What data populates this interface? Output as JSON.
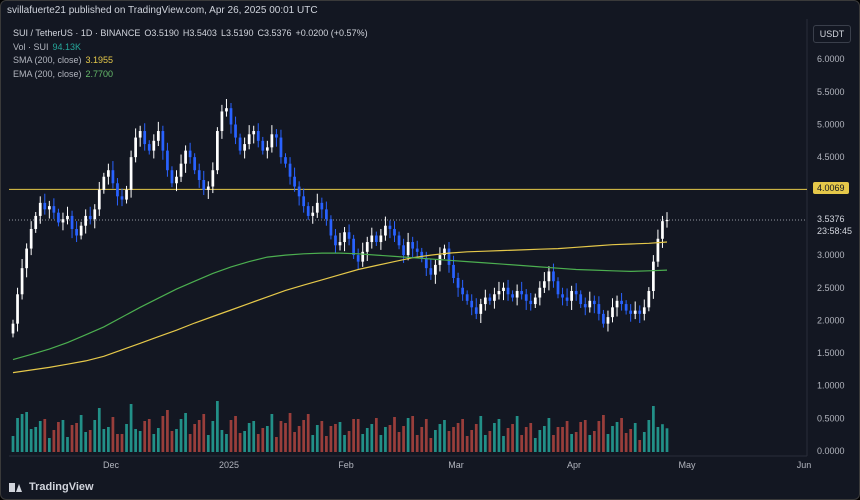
{
  "header": {
    "publisher_line": "svillafuerte21 published on TradingView.com, Apr 26, 2025 00:01 UTC"
  },
  "legend": {
    "symbol": "SUI / TetherUS · 1D · BINANCE",
    "open": "O3.5190",
    "high": "H3.5403",
    "low": "L3.5190",
    "close": "C3.5376",
    "change": "+0.0200 (+0.57%)",
    "vol_label": "Vol · SUI",
    "vol_value": "94.13K",
    "sma_label": "SMA (200, close)",
    "sma_value": "3.1955",
    "ema_label": "EMA (200, close)",
    "ema_value": "2.7700"
  },
  "currency_button": "USDT",
  "footer": {
    "brand": "TradingView"
  },
  "colors": {
    "background": "#131722",
    "up": "#ffffff",
    "down": "#2962ff",
    "sma": "#e5c84a",
    "ema": "#4caf50",
    "hline": "#e5c84a",
    "vol_up": "#26a69a",
    "vol_down": "#b2453f"
  },
  "chart_data": {
    "type": "candlestick",
    "y_axis": {
      "ticks": [
        "6.0000",
        "5.5000",
        "5.0000",
        "4.5000",
        "4.0000",
        "3.5000",
        "3.0000",
        "2.5000",
        "2.0000",
        "1.5000",
        "1.0000",
        "0.5000",
        "0.0000"
      ]
    },
    "x_axis": {
      "ticks": [
        "Dec",
        "2025",
        "Feb",
        "Mar",
        "Apr",
        "May",
        "Jun"
      ]
    },
    "horizontal_line": {
      "value": 4.0069,
      "label": "4.0069"
    },
    "last_price": {
      "value": 3.5376,
      "label": "3.5376",
      "countdown": "23:58:45"
    },
    "closes": [
      1.95,
      2.4,
      2.8,
      3.1,
      3.4,
      3.6,
      3.8,
      3.7,
      3.75,
      3.65,
      3.5,
      3.55,
      3.6,
      3.4,
      3.3,
      3.45,
      3.6,
      3.55,
      3.7,
      4.0,
      4.2,
      4.3,
      4.1,
      3.9,
      3.85,
      4.0,
      4.5,
      4.8,
      4.9,
      4.7,
      4.6,
      4.75,
      4.9,
      4.6,
      4.3,
      4.1,
      4.2,
      4.4,
      4.6,
      4.5,
      4.3,
      4.15,
      4.0,
      4.05,
      4.3,
      4.9,
      5.2,
      5.25,
      5.0,
      4.8,
      4.6,
      4.7,
      4.85,
      4.9,
      4.75,
      4.6,
      4.65,
      4.85,
      4.8,
      4.5,
      4.4,
      4.2,
      4.05,
      3.9,
      3.75,
      3.6,
      3.65,
      3.8,
      3.7,
      3.55,
      3.3,
      3.15,
      3.2,
      3.35,
      3.25,
      3.0,
      2.9,
      3.05,
      3.2,
      3.3,
      3.2,
      3.3,
      3.45,
      3.4,
      3.3,
      3.15,
      3.0,
      3.2,
      3.1,
      3.05,
      2.95,
      2.8,
      2.7,
      2.85,
      3.0,
      3.1,
      2.85,
      2.65,
      2.5,
      2.4,
      2.3,
      2.2,
      2.1,
      2.25,
      2.35,
      2.3,
      2.4,
      2.45,
      2.5,
      2.4,
      2.35,
      2.45,
      2.4,
      2.3,
      2.25,
      2.35,
      2.5,
      2.6,
      2.75,
      2.6,
      2.4,
      2.35,
      2.3,
      2.45,
      2.4,
      2.25,
      2.2,
      2.3,
      2.25,
      2.1,
      1.95,
      2.05,
      2.2,
      2.3,
      2.25,
      2.15,
      2.1,
      2.15,
      2.1,
      2.2,
      2.45,
      2.9,
      3.25,
      3.52,
      3.5376
    ],
    "sma200": [
      1.2,
      1.24,
      1.28,
      1.33,
      1.38,
      1.45,
      1.55,
      1.65,
      1.75,
      1.85,
      1.96,
      2.06,
      2.16,
      2.26,
      2.36,
      2.46,
      2.54,
      2.62,
      2.7,
      2.78,
      2.84,
      2.9,
      2.96,
      3.0,
      3.03,
      3.05,
      3.06,
      3.07,
      3.08,
      3.09,
      3.1,
      3.12,
      3.14,
      3.16,
      3.17,
      3.18,
      3.2
    ],
    "ema200": [
      1.4,
      1.48,
      1.56,
      1.66,
      1.78,
      1.9,
      2.05,
      2.2,
      2.34,
      2.48,
      2.6,
      2.72,
      2.82,
      2.9,
      2.97,
      3.0,
      3.02,
      3.03,
      3.03,
      3.02,
      3.0,
      2.98,
      2.96,
      2.94,
      2.92,
      2.9,
      2.88,
      2.86,
      2.84,
      2.82,
      2.8,
      2.78,
      2.77,
      2.76,
      2.75,
      2.76,
      2.77
    ]
  }
}
